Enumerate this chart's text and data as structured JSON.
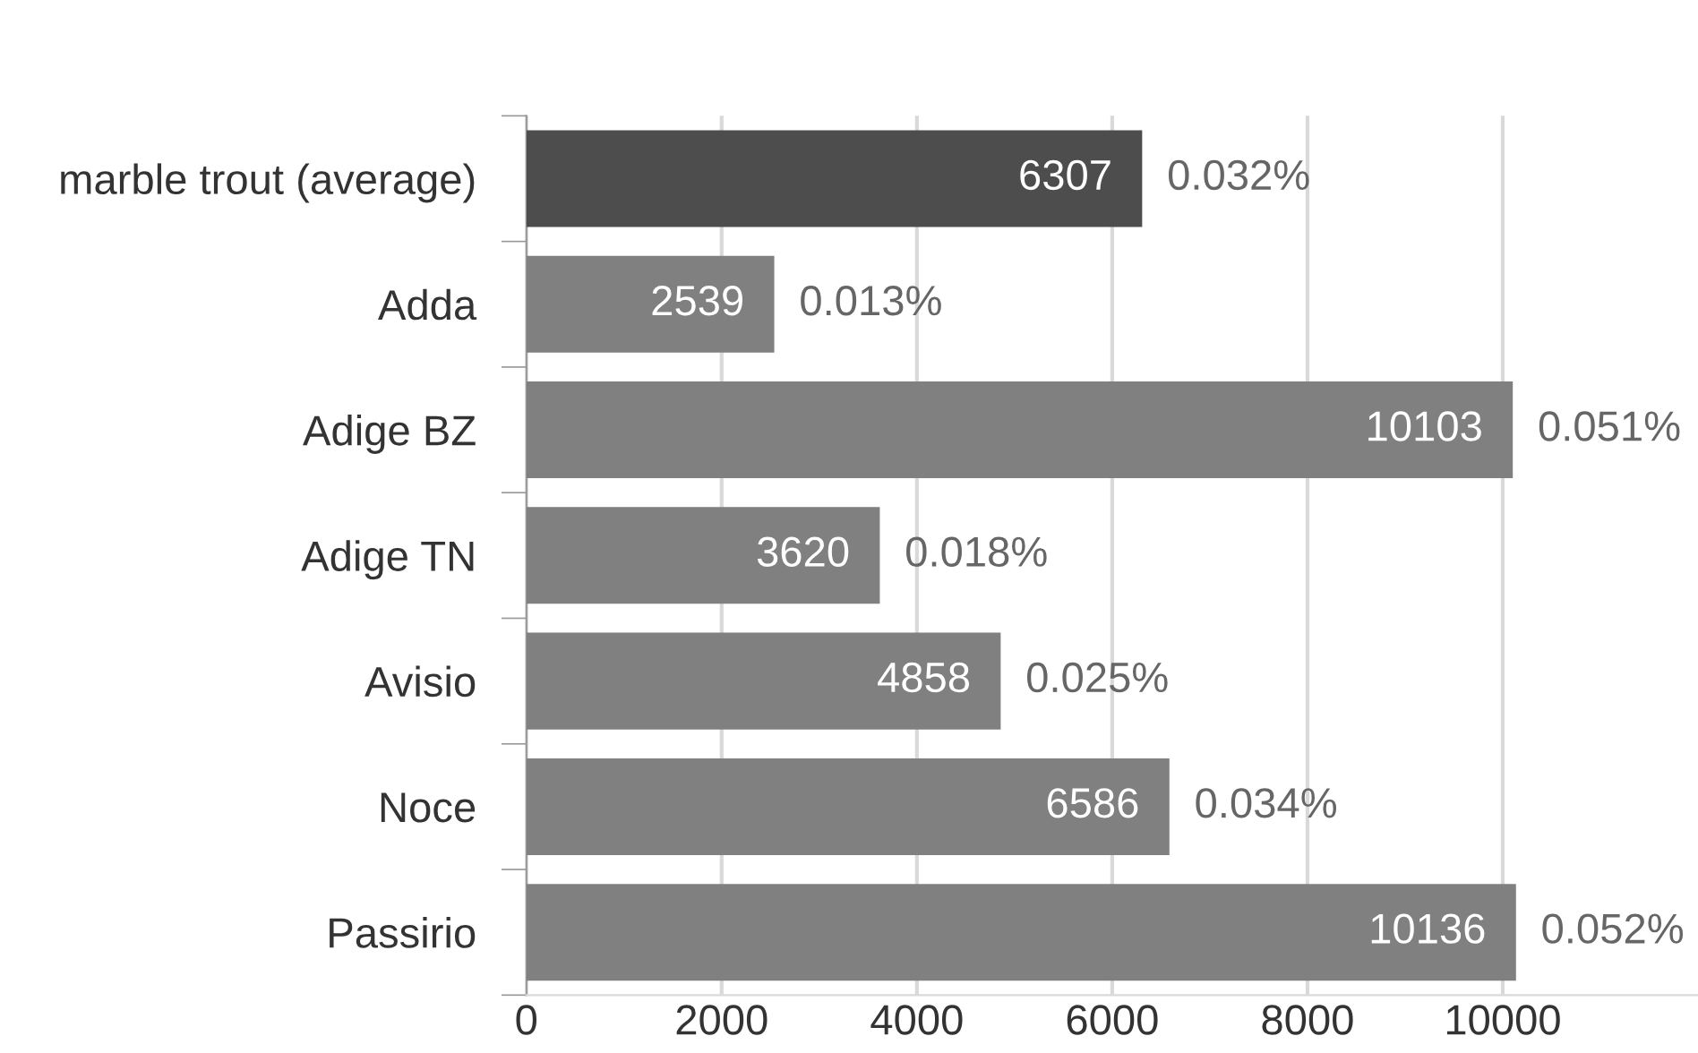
{
  "chart_data": {
    "type": "bar",
    "orientation": "horizontal",
    "categories": [
      "marble trout (average)",
      "Adda",
      "Adige BZ",
      "Adige TN",
      "Avisio",
      "Noce",
      "Passirio"
    ],
    "values": [
      6307,
      2539,
      10103,
      3620,
      4858,
      6586,
      10136
    ],
    "colors": [
      "#4d4d4d",
      "#808080",
      "#808080",
      "#808080",
      "#808080",
      "#808080",
      "#808080"
    ],
    "data_labels": true,
    "annotations": [
      {
        "text": "0.032%",
        "x": 6307,
        "y": "marble trout (average)"
      },
      {
        "text": "0.013%",
        "x": 2539,
        "y": "Adda"
      },
      {
        "text": "0.051%",
        "x": 10103,
        "y": "Adige BZ"
      },
      {
        "text": "0.018%",
        "x": 3620,
        "y": "Adige TN"
      },
      {
        "text": "0.025%",
        "x": 4858,
        "y": "Avisio"
      },
      {
        "text": "0.034%",
        "x": 6586,
        "y": "Noce"
      },
      {
        "text": "0.052%",
        "x": 10136,
        "y": "Passirio"
      }
    ],
    "xlim": [
      0,
      12000
    ],
    "xticks": [
      0,
      2000,
      4000,
      6000,
      8000,
      10000
    ],
    "grid": "x"
  }
}
